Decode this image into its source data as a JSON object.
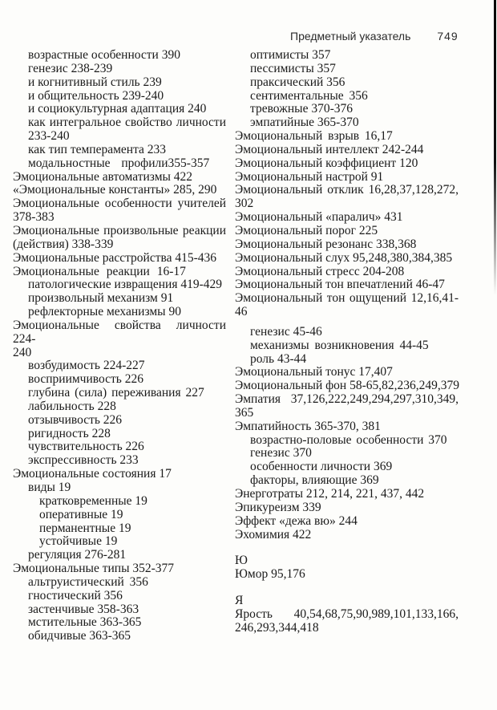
{
  "header": {
    "title": "Предметный указатель",
    "page_number": "749"
  },
  "columns": {
    "left": [
      {
        "t": "возрастные особенности 390",
        "i": 1
      },
      {
        "t": "генезис 238-239",
        "i": 1
      },
      {
        "t": "и когнитивный стиль 239",
        "i": 1
      },
      {
        "t": "и общительность 239-240",
        "i": 1
      },
      {
        "t": "и социокультурная адаптация 240",
        "i": 1
      },
      {
        "t": "как интегральное свойство личности",
        "i": 1,
        "j": true
      },
      {
        "t": "233-240",
        "i": 1
      },
      {
        "t": "как тип темперамента 233",
        "i": 1
      },
      {
        "t": "модальностные профили355-357",
        "i": 1,
        "ws": 10
      },
      {
        "t": "Эмоциональные автоматизмы 422",
        "i": 0
      },
      {
        "t": "«Эмоциональные константы» 285, 290",
        "i": 0
      },
      {
        "t": "Эмоциональные особенности учителей",
        "i": 0,
        "j": true
      },
      {
        "t": "378-383",
        "i": 0
      },
      {
        "t": "Эмоциональные произвольные реакции",
        "i": 0,
        "j": true
      },
      {
        "t": "(действия) 338-339",
        "i": 0
      },
      {
        "t": "Эмоциональные расстройства 415-436",
        "i": 0
      },
      {
        "t": "Эмоциональные реакции 16-17",
        "i": 0,
        "ws": 5
      },
      {
        "t": "патологические извращения 419-429",
        "i": 1
      },
      {
        "t": "произвольный механизм 91",
        "i": 1
      },
      {
        "t": "рефлекторные механизмы 90",
        "i": 1
      },
      {
        "t": "Эмоциональные свойства личности 224-",
        "i": 0,
        "j": true
      },
      {
        "t": "240",
        "i": 0
      },
      {
        "t": "возбудимость 224-227",
        "i": 1
      },
      {
        "t": "восприимчивость 226",
        "i": 1
      },
      {
        "t": "глубина (сила) переживания 227",
        "i": 1,
        "ws": 2
      },
      {
        "t": "лабильность 228",
        "i": 1
      },
      {
        "t": "отзывчивость 226",
        "i": 1
      },
      {
        "t": "ригидность 228",
        "i": 1
      },
      {
        "t": "чувствительность 226",
        "i": 1
      },
      {
        "t": "экспрессивность 233",
        "i": 1
      },
      {
        "t": "Эмоциональные состояния 17",
        "i": 0
      },
      {
        "t": "виды 19",
        "i": 1
      },
      {
        "t": "кратковременные 19",
        "i": 2
      },
      {
        "t": "оперативные 19",
        "i": 2
      },
      {
        "t": "перманентные 19",
        "i": 2
      },
      {
        "t": "устойчивые 19",
        "i": 2
      },
      {
        "t": "регуляция 276-281",
        "i": 1
      },
      {
        "t": "Эмоциональные типы 352-377",
        "i": 0
      },
      {
        "t": "альтруистический 356",
        "i": 1,
        "ws": 3
      },
      {
        "t": "гностический 356",
        "i": 1
      },
      {
        "t": "застенчивые 358-363",
        "i": 1
      },
      {
        "t": "мстительные 363-365",
        "i": 1
      },
      {
        "t": "обидчивые 363-365",
        "i": 1
      }
    ],
    "right": [
      {
        "t": "оптимисты 357",
        "i": 1
      },
      {
        "t": "пессимисты 357",
        "i": 1
      },
      {
        "t": "праксический 356",
        "i": 1
      },
      {
        "t": "сентиментальные 356",
        "i": 1,
        "ws": 3
      },
      {
        "t": "тревожные 370-376",
        "i": 1
      },
      {
        "t": "эмпатийные 365-370",
        "i": 1
      },
      {
        "t": "Эмоциональный взрыв 16,17",
        "i": 0,
        "ws": 3
      },
      {
        "t": "Эмоциональный интеллект 242-244",
        "i": 0
      },
      {
        "t": "Эмоциональный коэффициент 120",
        "i": 0
      },
      {
        "t": "Эмоциональный настрой 91",
        "i": 0
      },
      {
        "t": "Эмоциональный отклик 16,28,37,128,272,",
        "i": 0,
        "j": true
      },
      {
        "t": "302",
        "i": 0
      },
      {
        "t": "Эмоциональный «паралич» 431",
        "i": 0
      },
      {
        "t": "Эмоциональный порог 225",
        "i": 0
      },
      {
        "t": "Эмоциональный резонанс 338,368",
        "i": 0
      },
      {
        "t": "Эмоциональный слух 95,248,380,384,385",
        "i": 0
      },
      {
        "t": "Эмоциональный стресс 204-208",
        "i": 0
      },
      {
        "t": "Эмоциональный тон впечатлений 46-47",
        "i": 0
      },
      {
        "t": "Эмоциональный тон ощущений 12,16,41-",
        "i": 0,
        "j": true
      },
      {
        "t": "46",
        "i": 0
      },
      {
        "t": "генезис 45-46",
        "i": 1,
        "g": 8
      },
      {
        "t": "механизмы возникновения 44-45",
        "i": 1,
        "ws": 3
      },
      {
        "t": "роль 43-44",
        "i": 1
      },
      {
        "t": "Эмоциональный тонус 17,407",
        "i": 0
      },
      {
        "t": "Эмоциональный фон 58-65,82,236,249,379",
        "i": 0
      },
      {
        "t": "Эмпатия 37,126,222,249,294,297,310,349,",
        "i": 0,
        "j": true
      },
      {
        "t": "365",
        "i": 0
      },
      {
        "t": "Эмпатийность 365-370, 381",
        "i": 0
      },
      {
        "t": "возрастно-половые особенности 370",
        "i": 1,
        "ws": 2
      },
      {
        "t": "генезис 370",
        "i": 1
      },
      {
        "t": "особенности личности 369",
        "i": 1
      },
      {
        "t": "факторы, влияющие 369",
        "i": 1
      },
      {
        "t": "Энерготраты 212, 214, 221, 437, 442",
        "i": 0
      },
      {
        "t": "Эпикуреизм 339",
        "i": 0
      },
      {
        "t": "Эффект «дежа вю» 244",
        "i": 0
      },
      {
        "t": "Эхомимия 422",
        "i": 0
      },
      {
        "t": "Ю",
        "i": 0,
        "g": 16
      },
      {
        "t": "Юмор 95,176",
        "i": 0
      },
      {
        "t": "Я",
        "i": 0,
        "g": 16
      },
      {
        "t": "Ярость 40,54,68,75,90,989,101,133,166,",
        "i": 0,
        "j": true
      },
      {
        "t": "246,293,344,418",
        "i": 0
      }
    ]
  },
  "colors": {
    "ink": "#1a1a1a",
    "paper": "#fdfdfb",
    "scan_line": "#0d0d0d"
  }
}
